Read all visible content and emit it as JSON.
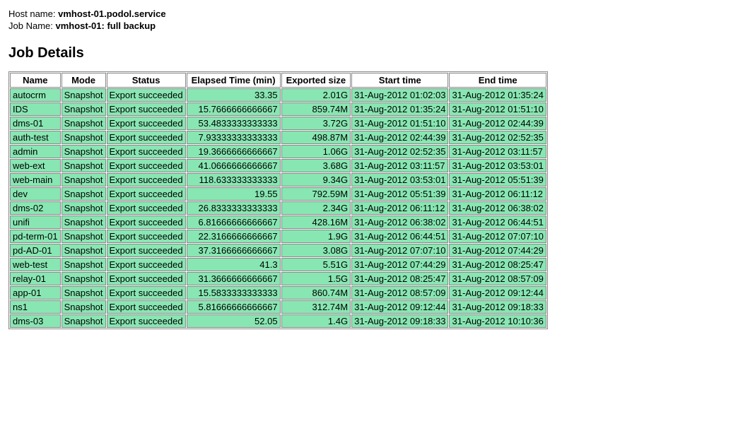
{
  "header": {
    "host_label": "Host name:",
    "host_value": "vmhost-01.podol.service",
    "job_label": "Job Name:",
    "job_value": "vmhost-01: full backup"
  },
  "section_title": "Job Details",
  "table": {
    "columns": [
      "Name",
      "Mode",
      "Status",
      "Elapsed Time (min)",
      "Exported size",
      "Start time",
      "End time"
    ],
    "column_align": [
      "left",
      "left",
      "left",
      "right",
      "right",
      "left",
      "left"
    ],
    "header_bg": "#ffffff",
    "cell_bg": "#88e6b2",
    "border_color": "#888888",
    "rows": [
      [
        "autocrm",
        "Snapshot",
        "Export succeeded",
        "33.35",
        "2.01G",
        "31-Aug-2012 01:02:03",
        "31-Aug-2012 01:35:24"
      ],
      [
        "IDS",
        "Snapshot",
        "Export succeeded",
        "15.7666666666667",
        "859.74M",
        "31-Aug-2012 01:35:24",
        "31-Aug-2012 01:51:10"
      ],
      [
        "dms-01",
        "Snapshot",
        "Export succeeded",
        "53.4833333333333",
        "3.72G",
        "31-Aug-2012 01:51:10",
        "31-Aug-2012 02:44:39"
      ],
      [
        "auth-test",
        "Snapshot",
        "Export succeeded",
        "7.93333333333333",
        "498.87M",
        "31-Aug-2012 02:44:39",
        "31-Aug-2012 02:52:35"
      ],
      [
        "admin",
        "Snapshot",
        "Export succeeded",
        "19.3666666666667",
        "1.06G",
        "31-Aug-2012 02:52:35",
        "31-Aug-2012 03:11:57"
      ],
      [
        "web-ext",
        "Snapshot",
        "Export succeeded",
        "41.0666666666667",
        "3.68G",
        "31-Aug-2012 03:11:57",
        "31-Aug-2012 03:53:01"
      ],
      [
        "web-main",
        "Snapshot",
        "Export succeeded",
        "118.633333333333",
        "9.34G",
        "31-Aug-2012 03:53:01",
        "31-Aug-2012 05:51:39"
      ],
      [
        "dev",
        "Snapshot",
        "Export succeeded",
        "19.55",
        "792.59M",
        "31-Aug-2012 05:51:39",
        "31-Aug-2012 06:11:12"
      ],
      [
        "dms-02",
        "Snapshot",
        "Export succeeded",
        "26.8333333333333",
        "2.34G",
        "31-Aug-2012 06:11:12",
        "31-Aug-2012 06:38:02"
      ],
      [
        "unifi",
        "Snapshot",
        "Export succeeded",
        "6.81666666666667",
        "428.16M",
        "31-Aug-2012 06:38:02",
        "31-Aug-2012 06:44:51"
      ],
      [
        "pd-term-01",
        "Snapshot",
        "Export succeeded",
        "22.3166666666667",
        "1.9G",
        "31-Aug-2012 06:44:51",
        "31-Aug-2012 07:07:10"
      ],
      [
        "pd-AD-01",
        "Snapshot",
        "Export succeeded",
        "37.3166666666667",
        "3.08G",
        "31-Aug-2012 07:07:10",
        "31-Aug-2012 07:44:29"
      ],
      [
        "web-test",
        "Snapshot",
        "Export succeeded",
        "41.3",
        "5.51G",
        "31-Aug-2012 07:44:29",
        "31-Aug-2012 08:25:47"
      ],
      [
        "relay-01",
        "Snapshot",
        "Export succeeded",
        "31.3666666666667",
        "1.5G",
        "31-Aug-2012 08:25:47",
        "31-Aug-2012 08:57:09"
      ],
      [
        "app-01",
        "Snapshot",
        "Export succeeded",
        "15.5833333333333",
        "860.74M",
        "31-Aug-2012 08:57:09",
        "31-Aug-2012 09:12:44"
      ],
      [
        "ns1",
        "Snapshot",
        "Export succeeded",
        "5.81666666666667",
        "312.74M",
        "31-Aug-2012 09:12:44",
        "31-Aug-2012 09:18:33"
      ],
      [
        "dms-03",
        "Snapshot",
        "Export succeeded",
        "52.05",
        "1.4G",
        "31-Aug-2012 09:18:33",
        "31-Aug-2012 10:10:36"
      ]
    ]
  }
}
